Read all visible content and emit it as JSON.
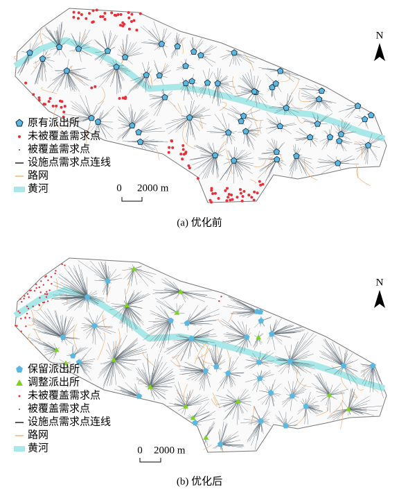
{
  "panels": [
    {
      "legend": [
        "原有派出所",
        "未被覆盖需求点",
        "被覆盖需求点",
        "设施点需求点连线",
        "路网",
        "黄河"
      ],
      "scale": {
        "zero": "0",
        "length": "2000 m"
      },
      "north": "N",
      "caption": "(a) 优化前"
    },
    {
      "legend": [
        "保留派出所",
        "调整派出所",
        "未被覆盖需求点",
        "被覆盖需求点",
        "设施点需求点连线",
        "路网",
        "黄河"
      ],
      "scale": {
        "zero": "0",
        "length": "2000 m"
      },
      "north": "N",
      "caption": "(b) 优化后"
    }
  ]
}
